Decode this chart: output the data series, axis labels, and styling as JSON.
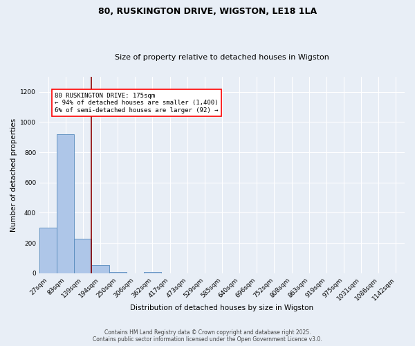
{
  "title_line1": "80, RUSKINGTON DRIVE, WIGSTON, LE18 1LA",
  "title_line2": "Size of property relative to detached houses in Wigston",
  "xlabel": "Distribution of detached houses by size in Wigston",
  "ylabel": "Number of detached properties",
  "footer_line1": "Contains HM Land Registry data © Crown copyright and database right 2025.",
  "footer_line2": "Contains public sector information licensed under the Open Government Licence v3.0.",
  "categories": [
    "27sqm",
    "83sqm",
    "139sqm",
    "194sqm",
    "250sqm",
    "306sqm",
    "362sqm",
    "417sqm",
    "473sqm",
    "529sqm",
    "585sqm",
    "640sqm",
    "696sqm",
    "752sqm",
    "808sqm",
    "863sqm",
    "919sqm",
    "975sqm",
    "1031sqm",
    "1086sqm",
    "1142sqm"
  ],
  "values": [
    300,
    920,
    230,
    55,
    8,
    0,
    8,
    0,
    0,
    0,
    0,
    0,
    0,
    0,
    0,
    0,
    0,
    0,
    0,
    0,
    0
  ],
  "bar_color": "#aec6e8",
  "bar_edge_color": "#5589bb",
  "background_color": "#e8eef6",
  "grid_color": "#ffffff",
  "vline_x": 2.5,
  "vline_color": "#8b0000",
  "annotation_text": "80 RUSKINGTON DRIVE: 175sqm\n← 94% of detached houses are smaller (1,400)\n6% of semi-detached houses are larger (92) →",
  "annotation_fontsize": 6.5,
  "ylim": [
    0,
    1300
  ],
  "yticks": [
    0,
    200,
    400,
    600,
    800,
    1000,
    1200
  ],
  "title_fontsize": 9,
  "subtitle_fontsize": 8,
  "xlabel_fontsize": 7.5,
  "ylabel_fontsize": 7.5,
  "tick_fontsize": 6.5,
  "footer_fontsize": 5.5
}
